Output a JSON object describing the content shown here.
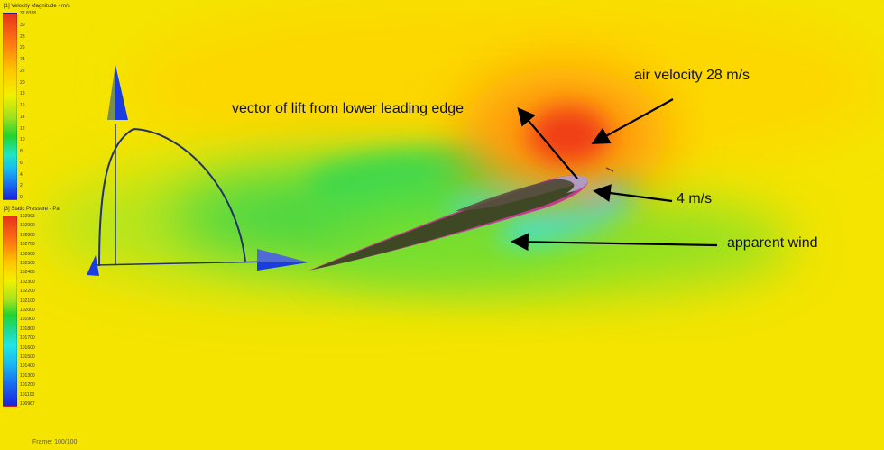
{
  "annotations": {
    "lift": "vector of lift from lower leading edge",
    "air_velocity": "air velocity 28 m/s",
    "low_speed": "4 m/s",
    "apparent_wind": "apparent wind"
  },
  "legend_velocity": {
    "title": "[1] Velocity Magnitude - m/s",
    "ticks": [
      "32.8328",
      "30",
      "28",
      "26",
      "24",
      "22",
      "20",
      "18",
      "16",
      "14",
      "12",
      "10",
      "8",
      "6",
      "4",
      "2",
      "0"
    ]
  },
  "legend_pressure": {
    "title": "[3] Static Pressure - Pa",
    "ticks": [
      "102993",
      "102900",
      "102800",
      "102700",
      "102600",
      "102500",
      "102400",
      "102300",
      "102200",
      "102100",
      "102000",
      "101900",
      "101800",
      "101700",
      "101600",
      "101500",
      "101400",
      "101300",
      "101200",
      "101100",
      "100967"
    ]
  },
  "frame_label": "Frame: 100/100",
  "colors": {
    "arrow_blue": "#1a3de0",
    "arc_navy": "#24306a",
    "airfoil_dark": "#3c4522",
    "field_yellow": "#f6e600",
    "field_green": "#3cd847",
    "field_cyan": "#38e6dc",
    "field_orange": "#ff8c10",
    "field_red": "#f23a12"
  }
}
